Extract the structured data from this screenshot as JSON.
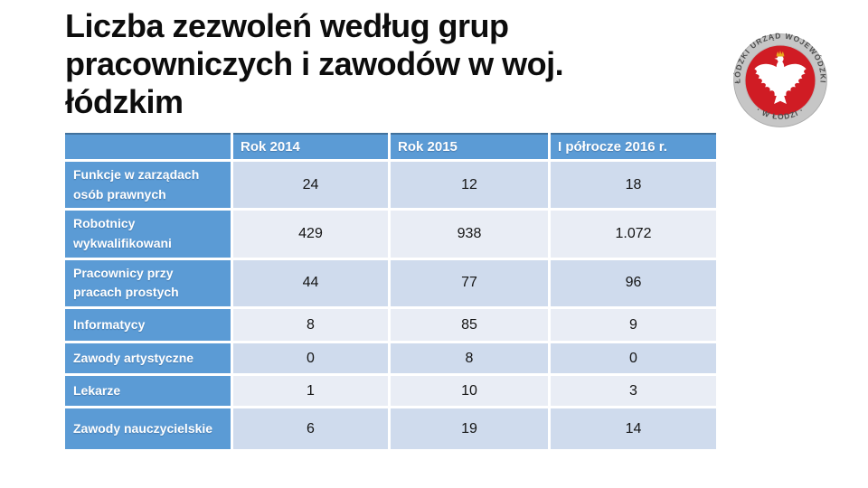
{
  "slide": {
    "title": "Liczba zezwoleń według grup pracowniczych i zawodów w woj. łódzkim",
    "background_color": "#ffffff"
  },
  "logo": {
    "description": "Seal of the Łódź Voivodeship Office: grey ring with embossed text, red centre with white crowned Polish eagle",
    "ring_text_top": "ŁÓDZKI URZĄD WOJEWÓDZKI",
    "ring_text_bottom": "· W ŁODZI ·",
    "colors": {
      "ring": "#c6c6c6",
      "ring_text": "#4d4d4d",
      "center": "#d01c24",
      "eagle": "#ffffff",
      "crown": "#e8a81c"
    }
  },
  "table": {
    "header": [
      "",
      "Rok 2014",
      "Rok 2015",
      "I półrocze 2016 r."
    ],
    "rows": [
      {
        "label": "Funkcje w zarządach osób prawnych",
        "values": [
          "24",
          "12",
          "18"
        ]
      },
      {
        "label": "Robotnicy wykwalifikowani",
        "values": [
          "429",
          "938",
          "1.072"
        ]
      },
      {
        "label": "Pracownicy przy pracach prostych",
        "values": [
          "44",
          "77",
          "96"
        ]
      },
      {
        "label": "Informatycy",
        "values": [
          "8",
          "85",
          "9"
        ]
      },
      {
        "label": "Zawody artystyczne",
        "values": [
          "0",
          "8",
          "0"
        ]
      },
      {
        "label": "Lekarze",
        "values": [
          "1",
          "10",
          "3"
        ]
      },
      {
        "label": "Zawody nauczycielskie",
        "values": [
          "6",
          "19",
          "14"
        ]
      }
    ],
    "colors": {
      "header_bg": "#5b9bd5",
      "header_text": "#ffffff",
      "header_top_border": "#41719c",
      "band_dark": "#cfdbed",
      "band_light": "#e9edf5",
      "value_text": "#141414"
    }
  }
}
